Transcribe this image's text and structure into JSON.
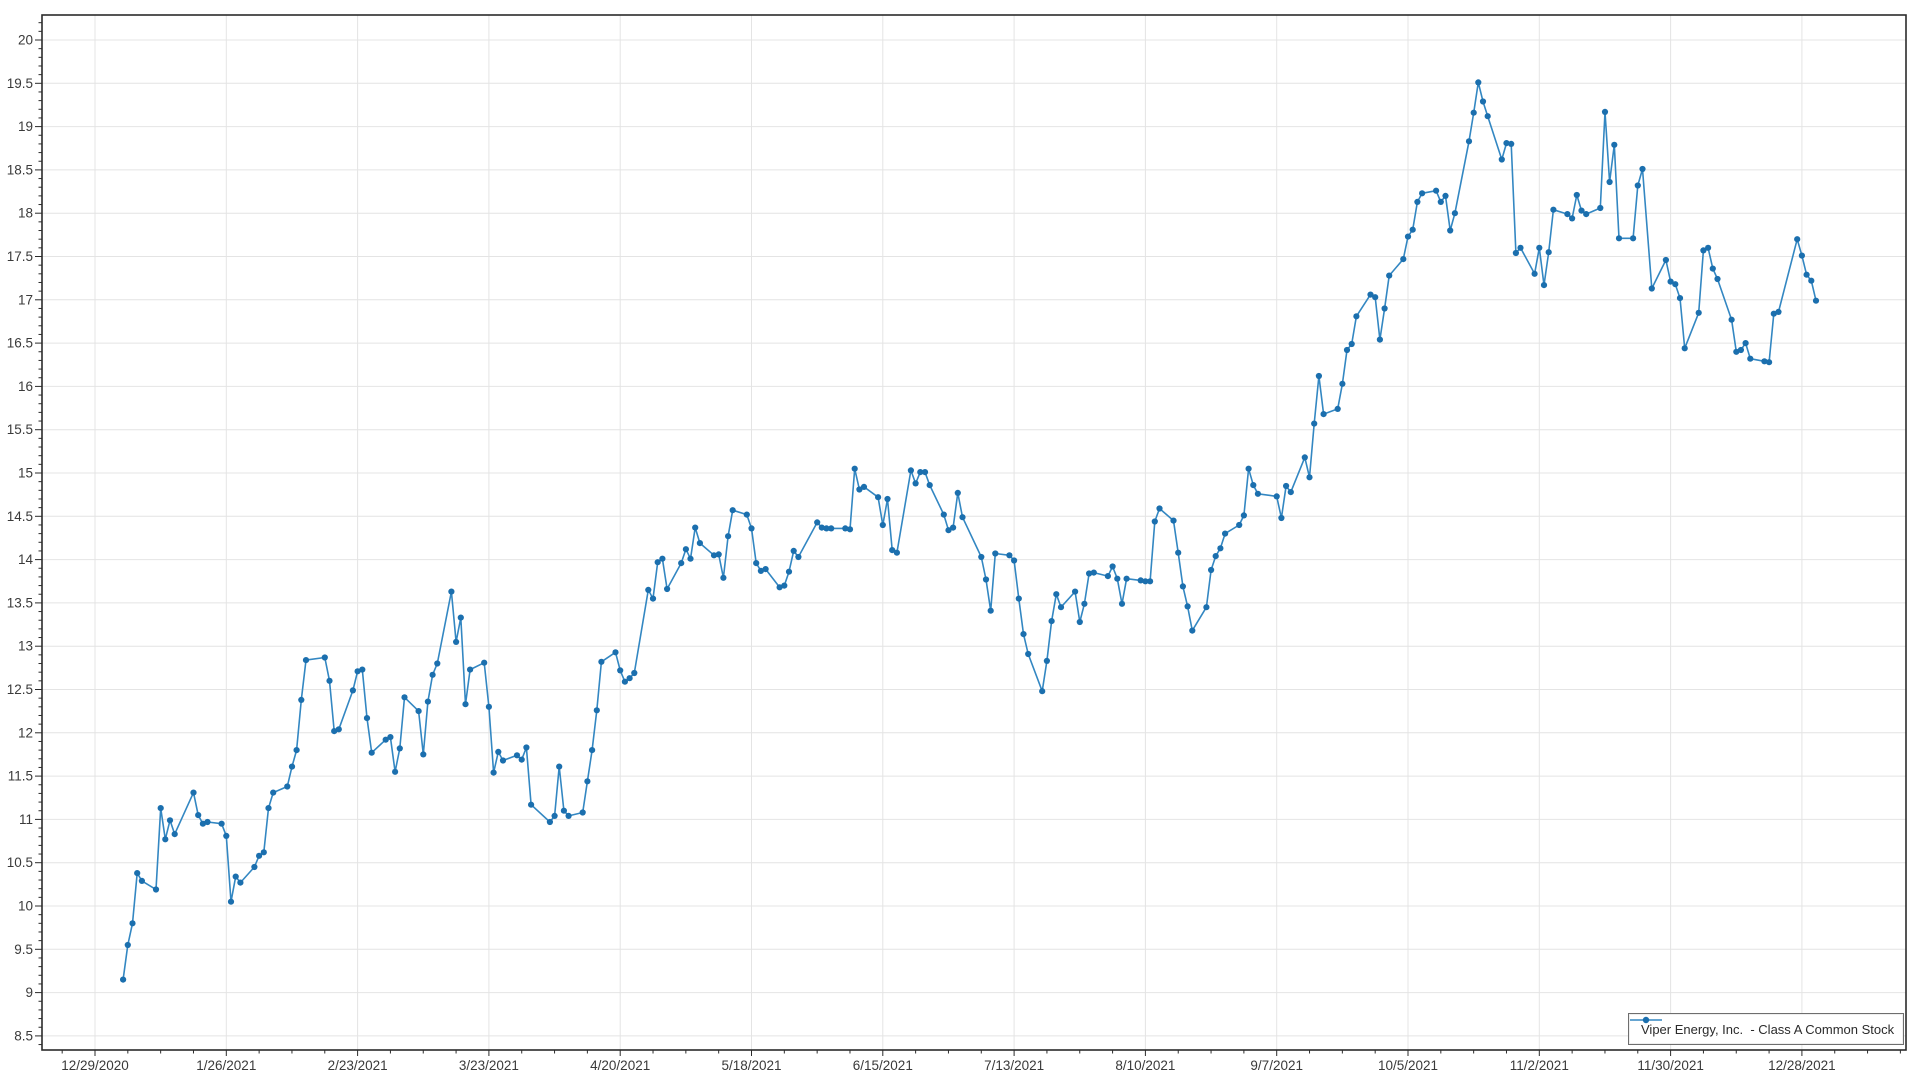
{
  "window": {
    "background": "#ffffff"
  },
  "chart_data": {
    "type": "line",
    "title": "",
    "legend": {
      "label": "Viper Energy, Inc.  - Class A Common Stock",
      "position": "bottom-right"
    },
    "style": {
      "line_color": "#3387c2",
      "marker_color": "#1b6fae",
      "grid_color": "#e4e4e4",
      "axis_color": "#2b2b2b",
      "marker_radius": 3.1
    },
    "x_axis": {
      "type": "date",
      "minor_tick_days": 7,
      "ticks": [
        {
          "date": "2020-12-29",
          "label": "12/29/2020"
        },
        {
          "date": "2021-01-26",
          "label": "1/26/2021"
        },
        {
          "date": "2021-02-23",
          "label": "2/23/2021"
        },
        {
          "date": "2021-03-23",
          "label": "3/23/2021"
        },
        {
          "date": "2021-04-20",
          "label": "4/20/2021"
        },
        {
          "date": "2021-05-18",
          "label": "5/18/2021"
        },
        {
          "date": "2021-06-15",
          "label": "6/15/2021"
        },
        {
          "date": "2021-07-13",
          "label": "7/13/2021"
        },
        {
          "date": "2021-08-10",
          "label": "8/10/2021"
        },
        {
          "date": "2021-09-07",
          "label": "9/7/2021"
        },
        {
          "date": "2021-10-05",
          "label": "10/5/2021"
        },
        {
          "date": "2021-11-02",
          "label": "11/2/2021"
        },
        {
          "date": "2021-11-30",
          "label": "11/30/2021"
        },
        {
          "date": "2021-12-28",
          "label": "12/28/2021"
        }
      ]
    },
    "y_axis": {
      "min": 8.5,
      "max": 20,
      "major_step": 0.5,
      "minor_step": 0.1,
      "grid": true
    },
    "series_name": "Viper Energy, Inc.  - Class A Common Stock",
    "points": [
      [
        "2021-01-04",
        9.15
      ],
      [
        "2021-01-05",
        9.55
      ],
      [
        "2021-01-06",
        9.8
      ],
      [
        "2021-01-07",
        10.38
      ],
      [
        "2021-01-08",
        10.29
      ],
      [
        "2021-01-11",
        10.19
      ],
      [
        "2021-01-12",
        11.13
      ],
      [
        "2021-01-13",
        10.77
      ],
      [
        "2021-01-14",
        10.99
      ],
      [
        "2021-01-15",
        10.83
      ],
      [
        "2021-01-19",
        11.31
      ],
      [
        "2021-01-20",
        11.05
      ],
      [
        "2021-01-21",
        10.95
      ],
      [
        "2021-01-22",
        10.97
      ],
      [
        "2021-01-25",
        10.95
      ],
      [
        "2021-01-26",
        10.81
      ],
      [
        "2021-01-27",
        10.05
      ],
      [
        "2021-01-28",
        10.34
      ],
      [
        "2021-01-29",
        10.27
      ],
      [
        "2021-02-01",
        10.45
      ],
      [
        "2021-02-02",
        10.58
      ],
      [
        "2021-02-03",
        10.62
      ],
      [
        "2021-02-04",
        11.13
      ],
      [
        "2021-02-05",
        11.31
      ],
      [
        "2021-02-08",
        11.38
      ],
      [
        "2021-02-09",
        11.61
      ],
      [
        "2021-02-10",
        11.8
      ],
      [
        "2021-02-11",
        12.38
      ],
      [
        "2021-02-12",
        12.84
      ],
      [
        "2021-02-16",
        12.87
      ],
      [
        "2021-02-17",
        12.6
      ],
      [
        "2021-02-18",
        12.02
      ],
      [
        "2021-02-19",
        12.04
      ],
      [
        "2021-02-22",
        12.49
      ],
      [
        "2021-02-23",
        12.71
      ],
      [
        "2021-02-24",
        12.73
      ],
      [
        "2021-02-25",
        12.17
      ],
      [
        "2021-02-26",
        11.77
      ],
      [
        "2021-03-01",
        11.92
      ],
      [
        "2021-03-02",
        11.95
      ],
      [
        "2021-03-03",
        11.55
      ],
      [
        "2021-03-04",
        11.82
      ],
      [
        "2021-03-05",
        12.41
      ],
      [
        "2021-03-08",
        12.25
      ],
      [
        "2021-03-09",
        11.75
      ],
      [
        "2021-03-10",
        12.36
      ],
      [
        "2021-03-11",
        12.67
      ],
      [
        "2021-03-12",
        12.8
      ],
      [
        "2021-03-15",
        13.63
      ],
      [
        "2021-03-16",
        13.05
      ],
      [
        "2021-03-17",
        13.33
      ],
      [
        "2021-03-18",
        12.33
      ],
      [
        "2021-03-19",
        12.73
      ],
      [
        "2021-03-22",
        12.81
      ],
      [
        "2021-03-23",
        12.3
      ],
      [
        "2021-03-24",
        11.54
      ],
      [
        "2021-03-25",
        11.78
      ],
      [
        "2021-03-26",
        11.68
      ],
      [
        "2021-03-29",
        11.74
      ],
      [
        "2021-03-30",
        11.69
      ],
      [
        "2021-03-31",
        11.83
      ],
      [
        "2021-04-01",
        11.17
      ],
      [
        "2021-04-05",
        10.97
      ],
      [
        "2021-04-06",
        11.04
      ],
      [
        "2021-04-07",
        11.61
      ],
      [
        "2021-04-08",
        11.1
      ],
      [
        "2021-04-09",
        11.04
      ],
      [
        "2021-04-12",
        11.08
      ],
      [
        "2021-04-13",
        11.44
      ],
      [
        "2021-04-14",
        11.8
      ],
      [
        "2021-04-15",
        12.26
      ],
      [
        "2021-04-16",
        12.82
      ],
      [
        "2021-04-19",
        12.93
      ],
      [
        "2021-04-20",
        12.72
      ],
      [
        "2021-04-21",
        12.59
      ],
      [
        "2021-04-22",
        12.63
      ],
      [
        "2021-04-23",
        12.69
      ],
      [
        "2021-04-26",
        13.65
      ],
      [
        "2021-04-27",
        13.55
      ],
      [
        "2021-04-28",
        13.97
      ],
      [
        "2021-04-29",
        14.01
      ],
      [
        "2021-04-30",
        13.66
      ],
      [
        "2021-05-03",
        13.96
      ],
      [
        "2021-05-04",
        14.12
      ],
      [
        "2021-05-05",
        14.01
      ],
      [
        "2021-05-06",
        14.37
      ],
      [
        "2021-05-07",
        14.19
      ],
      [
        "2021-05-10",
        14.05
      ],
      [
        "2021-05-11",
        14.06
      ],
      [
        "2021-05-12",
        13.79
      ],
      [
        "2021-05-13",
        14.27
      ],
      [
        "2021-05-14",
        14.57
      ],
      [
        "2021-05-17",
        14.52
      ],
      [
        "2021-05-18",
        14.36
      ],
      [
        "2021-05-19",
        13.96
      ],
      [
        "2021-05-20",
        13.87
      ],
      [
        "2021-05-21",
        13.89
      ],
      [
        "2021-05-24",
        13.68
      ],
      [
        "2021-05-25",
        13.7
      ],
      [
        "2021-05-26",
        13.86
      ],
      [
        "2021-05-27",
        14.1
      ],
      [
        "2021-05-28",
        14.03
      ],
      [
        "2021-06-01",
        14.43
      ],
      [
        "2021-06-02",
        14.37
      ],
      [
        "2021-06-03",
        14.36
      ],
      [
        "2021-06-04",
        14.36
      ],
      [
        "2021-06-07",
        14.36
      ],
      [
        "2021-06-08",
        14.35
      ],
      [
        "2021-06-09",
        15.05
      ],
      [
        "2021-06-10",
        14.81
      ],
      [
        "2021-06-11",
        14.84
      ],
      [
        "2021-06-14",
        14.72
      ],
      [
        "2021-06-15",
        14.4
      ],
      [
        "2021-06-16",
        14.7
      ],
      [
        "2021-06-17",
        14.11
      ],
      [
        "2021-06-18",
        14.08
      ],
      [
        "2021-06-21",
        15.03
      ],
      [
        "2021-06-22",
        14.88
      ],
      [
        "2021-06-23",
        15.01
      ],
      [
        "2021-06-24",
        15.01
      ],
      [
        "2021-06-25",
        14.86
      ],
      [
        "2021-06-28",
        14.52
      ],
      [
        "2021-06-29",
        14.34
      ],
      [
        "2021-06-30",
        14.37
      ],
      [
        "2021-07-01",
        14.77
      ],
      [
        "2021-07-02",
        14.49
      ],
      [
        "2021-07-06",
        14.03
      ],
      [
        "2021-07-07",
        13.77
      ],
      [
        "2021-07-08",
        13.41
      ],
      [
        "2021-07-09",
        14.07
      ],
      [
        "2021-07-12",
        14.05
      ],
      [
        "2021-07-13",
        13.99
      ],
      [
        "2021-07-14",
        13.55
      ],
      [
        "2021-07-15",
        13.14
      ],
      [
        "2021-07-16",
        12.91
      ],
      [
        "2021-07-19",
        12.48
      ],
      [
        "2021-07-20",
        12.83
      ],
      [
        "2021-07-21",
        13.29
      ],
      [
        "2021-07-22",
        13.6
      ],
      [
        "2021-07-23",
        13.45
      ],
      [
        "2021-07-26",
        13.63
      ],
      [
        "2021-07-27",
        13.28
      ],
      [
        "2021-07-28",
        13.49
      ],
      [
        "2021-07-29",
        13.84
      ],
      [
        "2021-07-30",
        13.85
      ],
      [
        "2021-08-02",
        13.81
      ],
      [
        "2021-08-03",
        13.92
      ],
      [
        "2021-08-04",
        13.78
      ],
      [
        "2021-08-05",
        13.49
      ],
      [
        "2021-08-06",
        13.78
      ],
      [
        "2021-08-09",
        13.76
      ],
      [
        "2021-08-10",
        13.75
      ],
      [
        "2021-08-11",
        13.75
      ],
      [
        "2021-08-12",
        14.44
      ],
      [
        "2021-08-13",
        14.59
      ],
      [
        "2021-08-16",
        14.45
      ],
      [
        "2021-08-17",
        14.08
      ],
      [
        "2021-08-18",
        13.69
      ],
      [
        "2021-08-19",
        13.46
      ],
      [
        "2021-08-20",
        13.18
      ],
      [
        "2021-08-23",
        13.45
      ],
      [
        "2021-08-24",
        13.88
      ],
      [
        "2021-08-25",
        14.04
      ],
      [
        "2021-08-26",
        14.13
      ],
      [
        "2021-08-27",
        14.3
      ],
      [
        "2021-08-30",
        14.4
      ],
      [
        "2021-08-31",
        14.51
      ],
      [
        "2021-09-01",
        15.05
      ],
      [
        "2021-09-02",
        14.86
      ],
      [
        "2021-09-03",
        14.76
      ],
      [
        "2021-09-07",
        14.73
      ],
      [
        "2021-09-08",
        14.48
      ],
      [
        "2021-09-09",
        14.85
      ],
      [
        "2021-09-10",
        14.78
      ],
      [
        "2021-09-13",
        15.18
      ],
      [
        "2021-09-14",
        14.95
      ],
      [
        "2021-09-15",
        15.57
      ],
      [
        "2021-09-16",
        16.12
      ],
      [
        "2021-09-17",
        15.68
      ],
      [
        "2021-09-20",
        15.74
      ],
      [
        "2021-09-21",
        16.03
      ],
      [
        "2021-09-22",
        16.42
      ],
      [
        "2021-09-23",
        16.49
      ],
      [
        "2021-09-24",
        16.81
      ],
      [
        "2021-09-27",
        17.06
      ],
      [
        "2021-09-28",
        17.03
      ],
      [
        "2021-09-29",
        16.54
      ],
      [
        "2021-09-30",
        16.9
      ],
      [
        "2021-10-01",
        17.28
      ],
      [
        "2021-10-04",
        17.47
      ],
      [
        "2021-10-05",
        17.73
      ],
      [
        "2021-10-06",
        17.81
      ],
      [
        "2021-10-07",
        18.13
      ],
      [
        "2021-10-08",
        18.23
      ],
      [
        "2021-10-11",
        18.26
      ],
      [
        "2021-10-12",
        18.13
      ],
      [
        "2021-10-13",
        18.2
      ],
      [
        "2021-10-14",
        17.8
      ],
      [
        "2021-10-15",
        18.0
      ],
      [
        "2021-10-18",
        18.83
      ],
      [
        "2021-10-19",
        19.16
      ],
      [
        "2021-10-20",
        19.51
      ],
      [
        "2021-10-21",
        19.29
      ],
      [
        "2021-10-22",
        19.12
      ],
      [
        "2021-10-25",
        18.62
      ],
      [
        "2021-10-26",
        18.81
      ],
      [
        "2021-10-27",
        18.8
      ],
      [
        "2021-10-28",
        17.54
      ],
      [
        "2021-10-29",
        17.6
      ],
      [
        "2021-11-01",
        17.3
      ],
      [
        "2021-11-02",
        17.6
      ],
      [
        "2021-11-03",
        17.17
      ],
      [
        "2021-11-04",
        17.55
      ],
      [
        "2021-11-05",
        18.04
      ],
      [
        "2021-11-08",
        17.99
      ],
      [
        "2021-11-09",
        17.94
      ],
      [
        "2021-11-10",
        18.21
      ],
      [
        "2021-11-11",
        18.03
      ],
      [
        "2021-11-12",
        17.99
      ],
      [
        "2021-11-15",
        18.06
      ],
      [
        "2021-11-16",
        19.17
      ],
      [
        "2021-11-17",
        18.36
      ],
      [
        "2021-11-18",
        18.79
      ],
      [
        "2021-11-19",
        17.71
      ],
      [
        "2021-11-22",
        17.71
      ],
      [
        "2021-11-23",
        18.32
      ],
      [
        "2021-11-24",
        18.51
      ],
      [
        "2021-11-26",
        17.13
      ],
      [
        "2021-11-29",
        17.46
      ],
      [
        "2021-11-30",
        17.21
      ],
      [
        "2021-12-01",
        17.18
      ],
      [
        "2021-12-02",
        17.02
      ],
      [
        "2021-12-03",
        16.44
      ],
      [
        "2021-12-06",
        16.85
      ],
      [
        "2021-12-07",
        17.57
      ],
      [
        "2021-12-08",
        17.6
      ],
      [
        "2021-12-09",
        17.36
      ],
      [
        "2021-12-10",
        17.24
      ],
      [
        "2021-12-13",
        16.77
      ],
      [
        "2021-12-14",
        16.4
      ],
      [
        "2021-12-15",
        16.42
      ],
      [
        "2021-12-16",
        16.5
      ],
      [
        "2021-12-17",
        16.32
      ],
      [
        "2021-12-20",
        16.29
      ],
      [
        "2021-12-21",
        16.28
      ],
      [
        "2021-12-22",
        16.84
      ],
      [
        "2021-12-23",
        16.86
      ],
      [
        "2021-12-27",
        17.7
      ],
      [
        "2021-12-28",
        17.51
      ],
      [
        "2021-12-29",
        17.29
      ],
      [
        "2021-12-30",
        17.22
      ],
      [
        "2021-12-31",
        16.99
      ]
    ]
  }
}
